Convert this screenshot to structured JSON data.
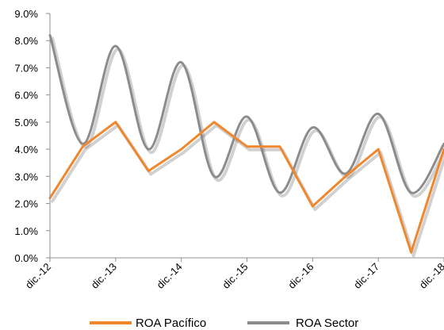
{
  "chart_data": {
    "type": "line",
    "title": "",
    "xlabel": "",
    "ylabel": "",
    "ylim": [
      0,
      9
    ],
    "y_ticks": [
      "0.0%",
      "1.0%",
      "2.0%",
      "3.0%",
      "4.0%",
      "5.0%",
      "6.0%",
      "7.0%",
      "8.0%",
      "9.0%"
    ],
    "x_ticks": [
      "dic.-12",
      "dic.-13",
      "dic.-14",
      "dic.-15",
      "dic.-16",
      "dic.-17",
      "dic.-18"
    ],
    "x": [
      0,
      0.5,
      1,
      1.5,
      2,
      2.5,
      3,
      3.5,
      4,
      4.5,
      5,
      5.5,
      6
    ],
    "legend_position": "bottom",
    "grid": false,
    "series": [
      {
        "name": "ROA Pacífico",
        "color": "#F0872D",
        "smooth": false,
        "values": [
          2.2,
          4.1,
          5.0,
          3.2,
          4.0,
          5.0,
          4.1,
          4.1,
          1.9,
          3.0,
          4.0,
          0.2,
          4.0
        ]
      },
      {
        "name": "ROA Sector",
        "color": "#8C8C8C",
        "smooth": true,
        "values": [
          8.2,
          4.2,
          7.8,
          4.0,
          7.2,
          3.0,
          5.2,
          2.4,
          4.8,
          3.1,
          5.3,
          2.4,
          4.2
        ]
      }
    ]
  }
}
